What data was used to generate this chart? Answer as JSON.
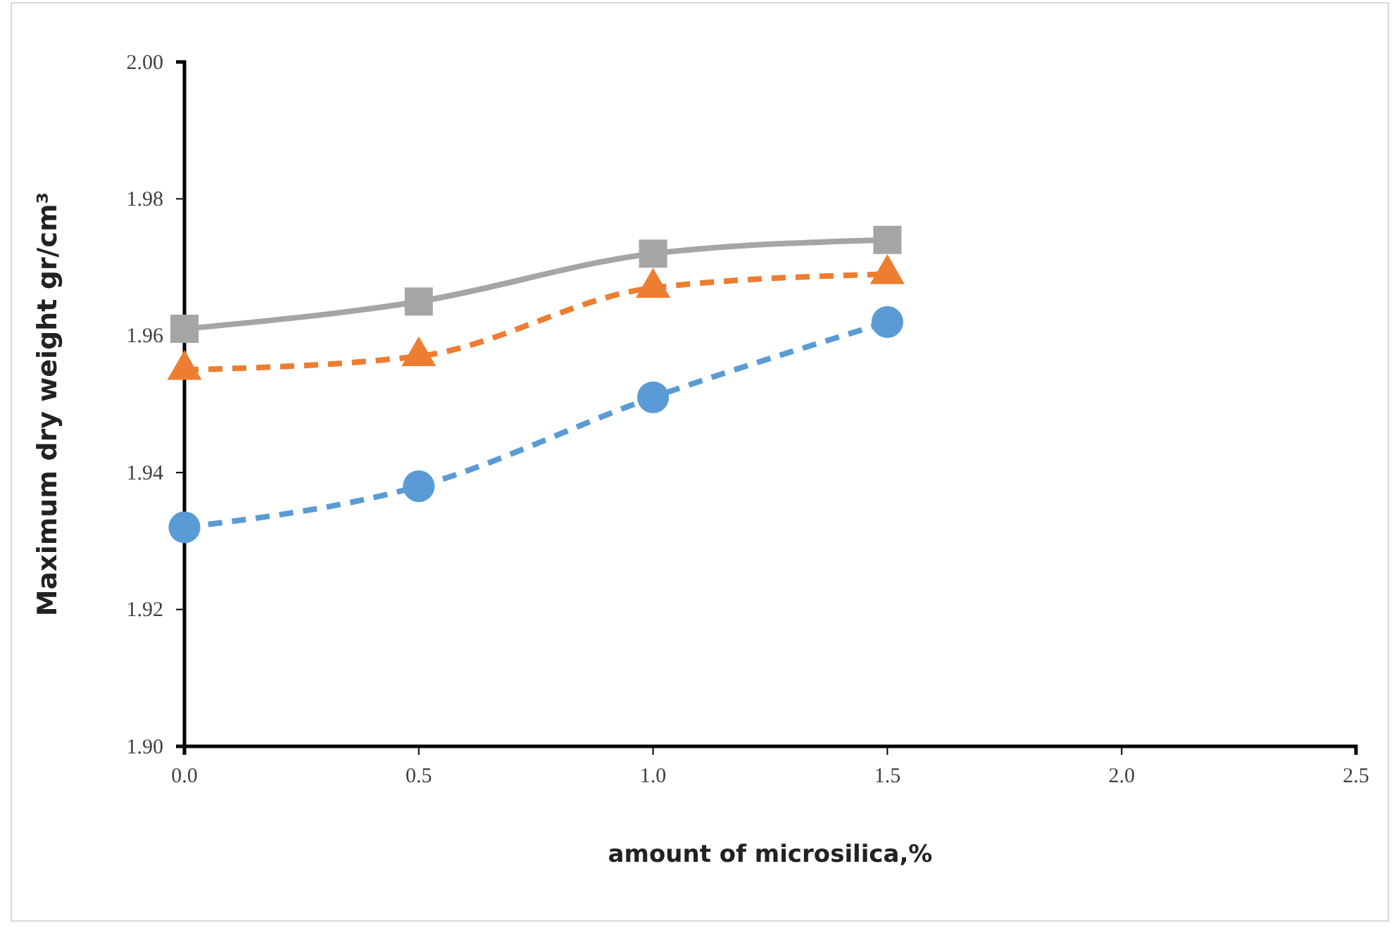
{
  "chart_data": {
    "type": "line",
    "xlabel": "amount of microsilica,%",
    "ylabel": "Maximum dry weight gr/cm³",
    "x": [
      0,
      0.5,
      1.0,
      1.5
    ],
    "xlim": [
      0,
      2.5
    ],
    "xticks": [
      {
        "value": 0,
        "label": "0.0"
      },
      0.5,
      {
        "value": 1,
        "label": "1.0"
      },
      1.5,
      {
        "value": 2,
        "label": "2.0"
      },
      2.5
    ],
    "ylim": [
      1.9,
      2.0
    ],
    "yticks": [
      {
        "value": 1.9,
        "label": "1.90"
      },
      1.92,
      1.94,
      1.96,
      1.98,
      {
        "value": 2,
        "label": "2.00"
      }
    ],
    "grid": false,
    "series": [
      {
        "color": "#5b9bd5",
        "marker": "circle",
        "line_style": "dashed",
        "values": [
          1.932,
          1.938,
          1.951,
          1.962
        ]
      },
      {
        "color": "#ed7d31",
        "marker": "triangle",
        "line_style": "dashed",
        "values": [
          1.955,
          1.957,
          1.967,
          1.969
        ]
      },
      {
        "color": "#a5a5a5",
        "marker": "square",
        "line_style": "solid",
        "values": [
          1.961,
          1.965,
          1.972,
          1.974
        ]
      }
    ]
  }
}
